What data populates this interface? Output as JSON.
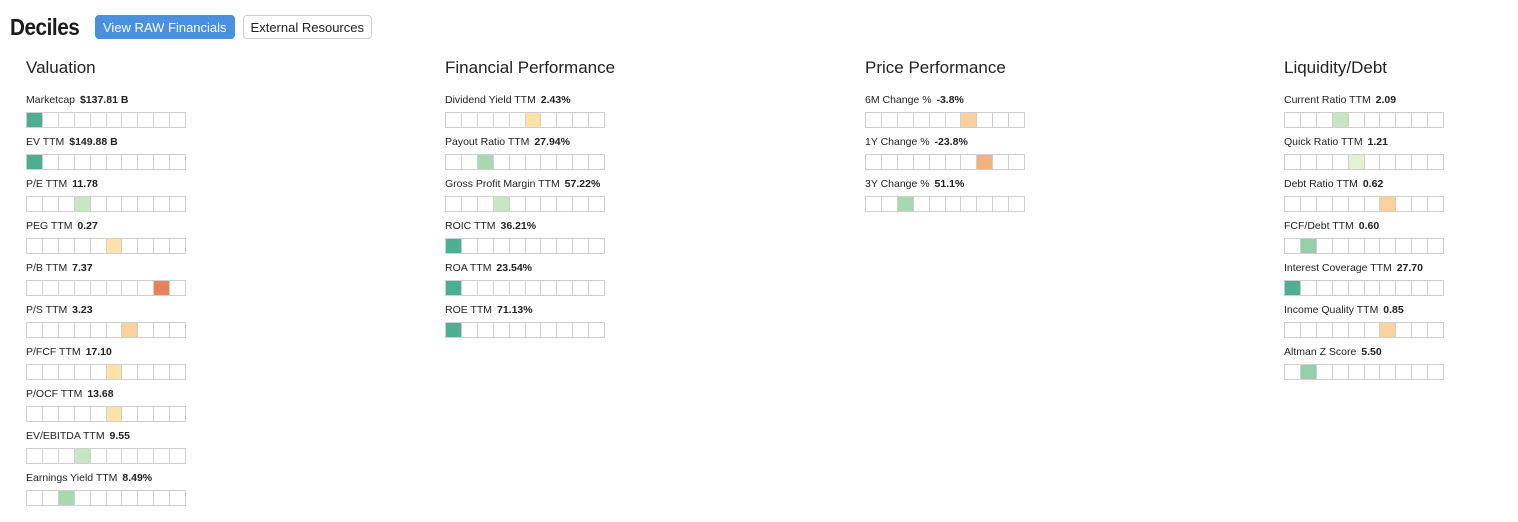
{
  "header": {
    "title": "Deciles",
    "raw_button": "View RAW Financials",
    "external_button": "External Resources"
  },
  "colors": {
    "d1": "#4caf8f",
    "d2": "#93cfa8",
    "d3": "#c8e6c4",
    "d4": "#e4f2d4",
    "d5": "#fde3a7",
    "d6": "#f9d19a",
    "d7": "#f2b27c",
    "d8": "#ee9f6a",
    "d9": "#e8845a",
    "d10": "#e36f4d"
  },
  "columns": [
    {
      "title": "Valuation",
      "metrics": [
        {
          "label": "Marketcap",
          "value": "$137.81 B",
          "decile": 1,
          "color": "#4caf8f"
        },
        {
          "label": "EV TTM",
          "value": "$149.88 B",
          "decile": 1,
          "color": "#4caf8f"
        },
        {
          "label": "P/E TTM",
          "value": "11.78",
          "decile": 4,
          "color": "#c8e6c4"
        },
        {
          "label": "PEG TTM",
          "value": "0.27",
          "decile": 6,
          "color": "#fde3a7"
        },
        {
          "label": "P/B TTM",
          "value": "7.37",
          "decile": 9,
          "color": "#e4825a"
        },
        {
          "label": "P/S TTM",
          "value": "3.23",
          "decile": 7,
          "color": "#f9d19a"
        },
        {
          "label": "P/FCF TTM",
          "value": "17.10",
          "decile": 6,
          "color": "#fde3a7"
        },
        {
          "label": "P/OCF TTM",
          "value": "13.68",
          "decile": 6,
          "color": "#fde3a7"
        },
        {
          "label": "EV/EBITDA TTM",
          "value": "9.55",
          "decile": 4,
          "color": "#c8e6c4"
        },
        {
          "label": "Earnings Yield TTM",
          "value": "8.49%",
          "decile": 3,
          "color": "#a8d8b0"
        }
      ]
    },
    {
      "title": "Financial Performance",
      "metrics": [
        {
          "label": "Dividend Yield TTM",
          "value": "2.43%",
          "decile": 6,
          "color": "#fde3a7"
        },
        {
          "label": "Payout Ratio TTM",
          "value": "27.94%",
          "decile": 3,
          "color": "#a8d8b0"
        },
        {
          "label": "Gross Profit Margin TTM",
          "value": "57.22%",
          "decile": 4,
          "color": "#c8e6c4"
        },
        {
          "label": "ROIC TTM",
          "value": "36.21%",
          "decile": 1,
          "color": "#4caf8f"
        },
        {
          "label": "ROA TTM",
          "value": "23.54%",
          "decile": 1,
          "color": "#4caf8f"
        },
        {
          "label": "ROE TTM",
          "value": "71.13%",
          "decile": 1,
          "color": "#4caf8f"
        }
      ]
    },
    {
      "title": "Price Performance",
      "metrics": [
        {
          "label": "6M Change %",
          "value": "-3.8%",
          "decile": 7,
          "color": "#f9d19a"
        },
        {
          "label": "1Y Change %",
          "value": "-23.8%",
          "decile": 8,
          "color": "#f2b27c"
        },
        {
          "label": "3Y Change %",
          "value": "51.1%",
          "decile": 3,
          "color": "#a8d8b0"
        }
      ]
    },
    {
      "title": "Liquidity/Debt",
      "metrics": [
        {
          "label": "Current Ratio TTM",
          "value": "2.09",
          "decile": 4,
          "color": "#c8e6c4"
        },
        {
          "label": "Quick Ratio TTM",
          "value": "1.21",
          "decile": 5,
          "color": "#e4f2d4"
        },
        {
          "label": "Debt Ratio TTM",
          "value": "0.62",
          "decile": 7,
          "color": "#f9d19a"
        },
        {
          "label": "FCF/Debt TTM",
          "value": "0.60",
          "decile": 2,
          "color": "#93cfa8"
        },
        {
          "label": "Interest Coverage TTM",
          "value": "27.70",
          "decile": 1,
          "color": "#4caf8f"
        },
        {
          "label": "Income Quality TTM",
          "value": "0.85",
          "decile": 7,
          "color": "#f9d19a"
        },
        {
          "label": "Altman Z Score",
          "value": "5.50",
          "decile": 2,
          "color": "#93cfa8"
        }
      ]
    }
  ]
}
